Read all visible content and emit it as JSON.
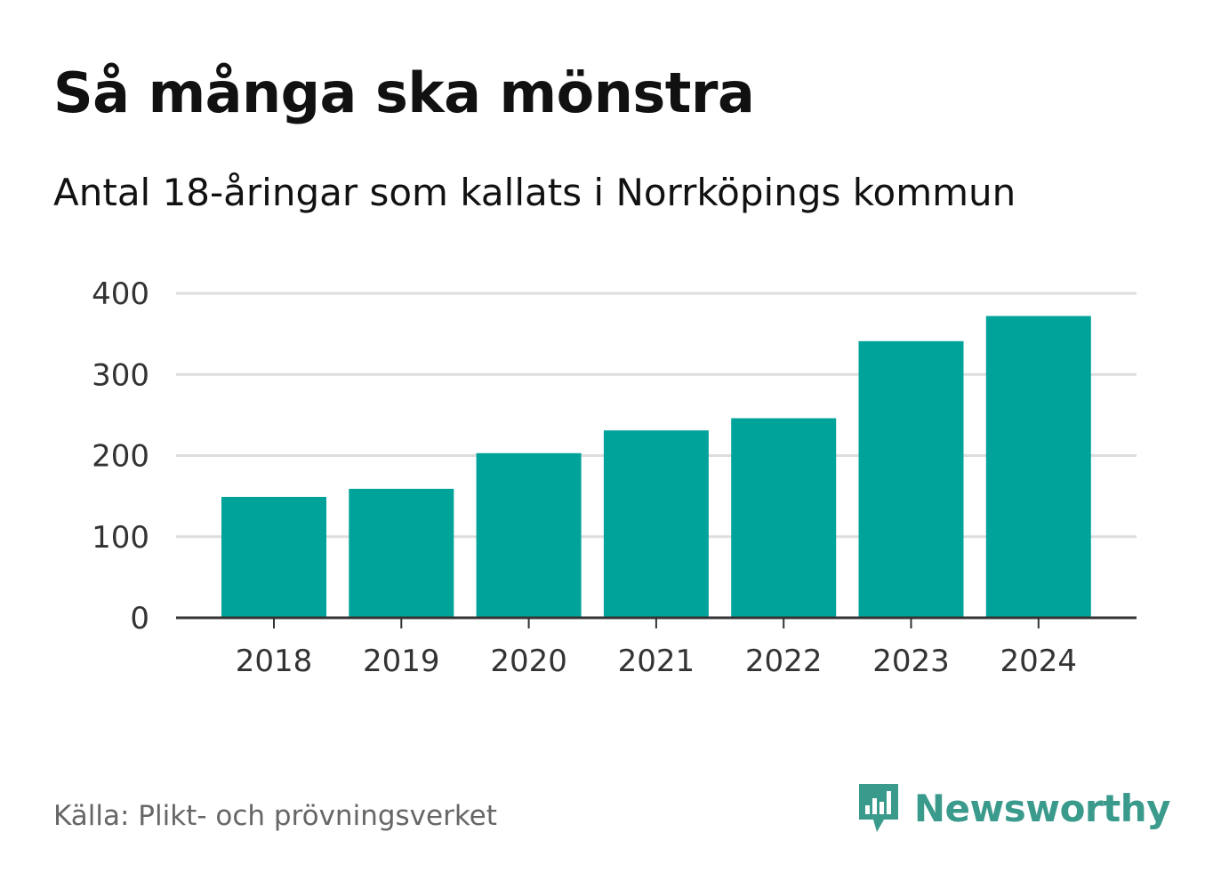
{
  "header": {
    "title": "Så många ska mönstra",
    "subtitle": "Antal 18-åringar som kallats i Norrköpings kommun"
  },
  "footer": {
    "source": "Källa: Plikt- och prövningsverket",
    "brand_name": "Newsworthy",
    "brand_icon": "newsworthy-logo-icon"
  },
  "colors": {
    "bar": "#00a39a",
    "grid": "#dddddd",
    "axis": "#333333",
    "brand": "#3a9a8c"
  },
  "chart_data": {
    "type": "bar",
    "title": "Så många ska mönstra",
    "subtitle": "Antal 18-åringar som kallats i Norrköpings kommun",
    "categories": [
      "2018",
      "2019",
      "2020",
      "2021",
      "2022",
      "2023",
      "2024"
    ],
    "values": [
      149,
      159,
      203,
      231,
      246,
      341,
      372
    ],
    "xlabel": "",
    "ylabel": "",
    "ylim": [
      0,
      400
    ],
    "yticks": [
      0,
      100,
      200,
      300,
      400
    ],
    "grid": true,
    "legend": "none"
  }
}
